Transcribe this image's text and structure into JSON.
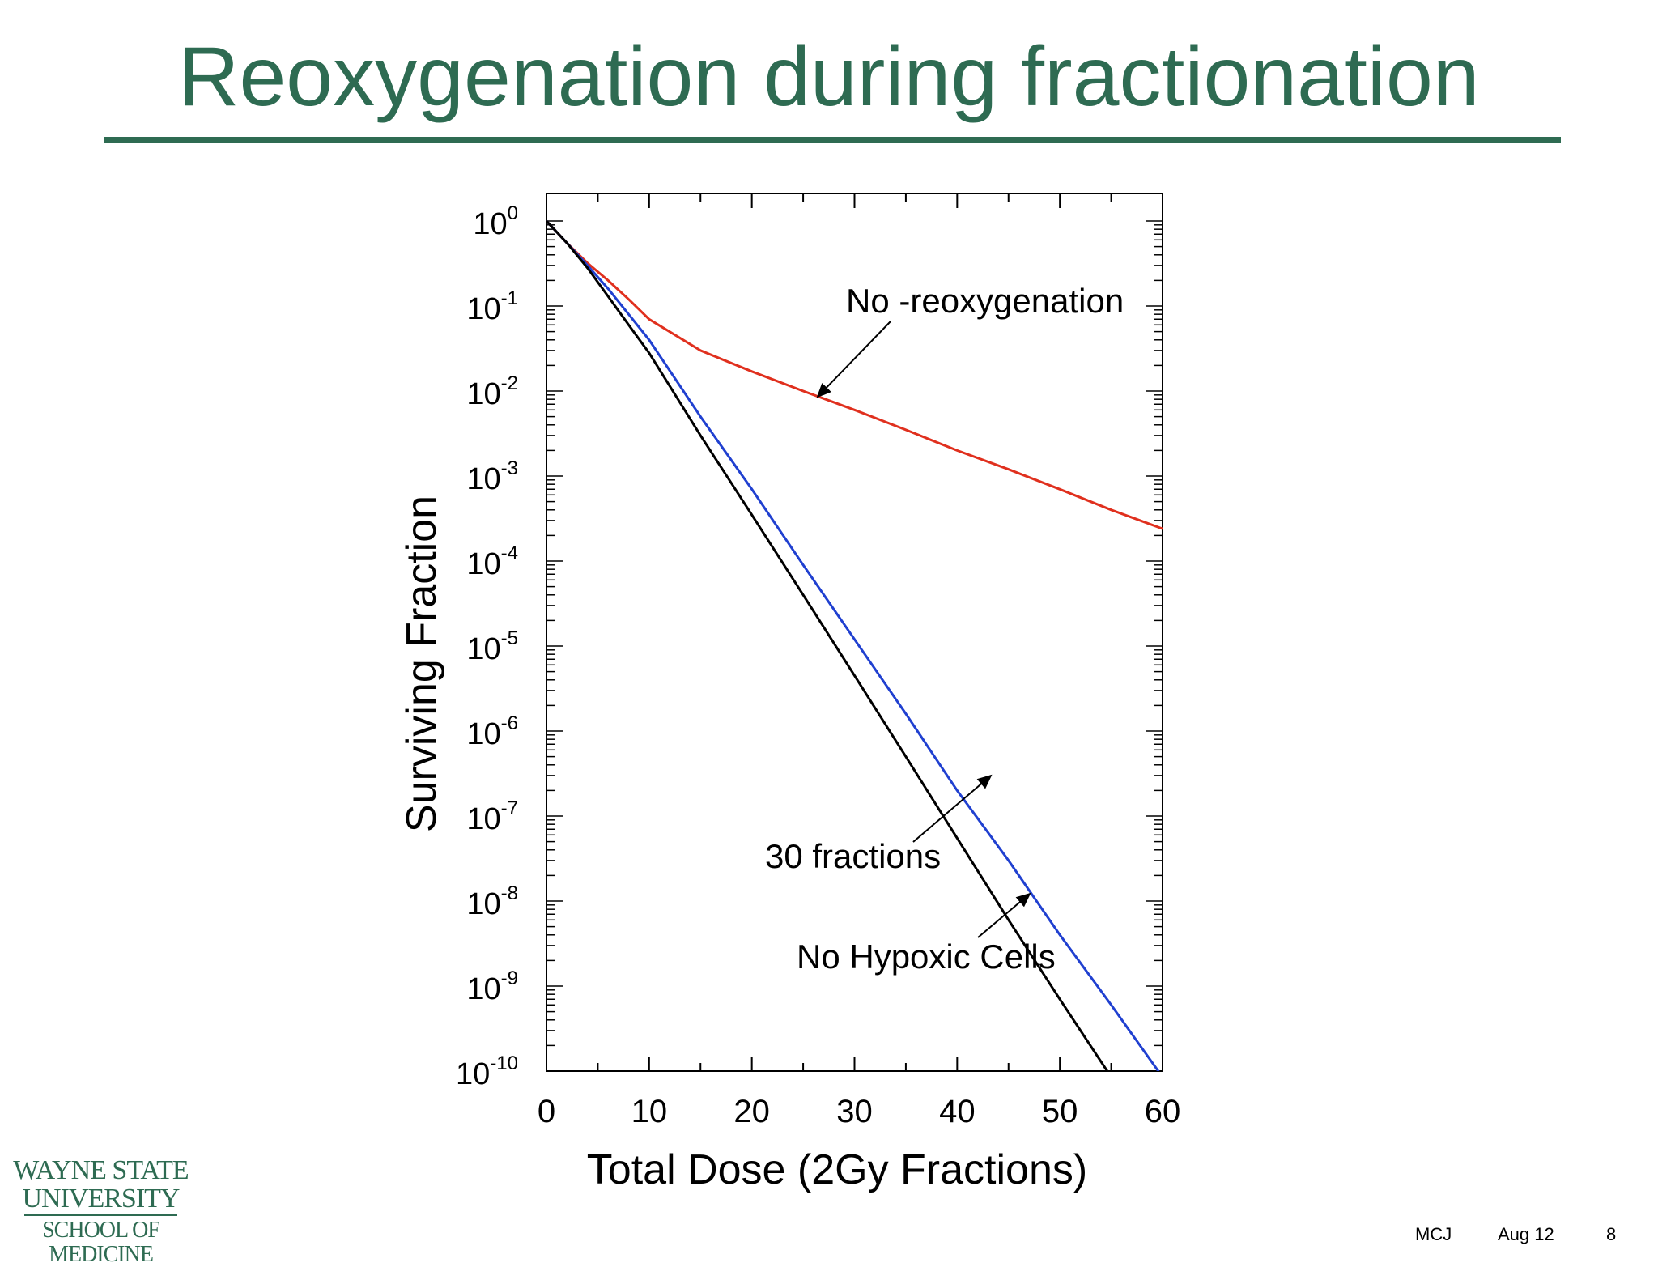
{
  "slide": {
    "title": "Reoxygenation during fractionation",
    "title_color": "#2e6b52",
    "footer": {
      "author": "MCJ",
      "date": "Aug 12",
      "page": "8"
    }
  },
  "logo": {
    "line1": "WAYNE STATE",
    "line2": "UNIVERSITY",
    "line3": "SCHOOL OF MEDICINE"
  },
  "chart_data": {
    "type": "line",
    "title": "",
    "xlabel": "Total Dose (2Gy Fractions)",
    "ylabel": "Surviving Fraction",
    "xlim": [
      0,
      60
    ],
    "ylim": [
      1e-10,
      1
    ],
    "yscale": "log",
    "grid": false,
    "x_ticks": [
      "0",
      "10",
      "20",
      "30",
      "40",
      "50",
      "60"
    ],
    "y_ticks": [
      {
        "base": "10",
        "exp": "0"
      },
      {
        "base": "10",
        "exp": "-1"
      },
      {
        "base": "10",
        "exp": "-2"
      },
      {
        "base": "10",
        "exp": "-3"
      },
      {
        "base": "10",
        "exp": "-4"
      },
      {
        "base": "10",
        "exp": "-5"
      },
      {
        "base": "10",
        "exp": "-6"
      },
      {
        "base": "10",
        "exp": "-7"
      },
      {
        "base": "10",
        "exp": "-8"
      },
      {
        "base": "10",
        "exp": "-9"
      },
      {
        "base": "10",
        "exp": "-10"
      }
    ],
    "series": [
      {
        "color": "#e0301e",
        "x": [
          0,
          2,
          4,
          6,
          8,
          10,
          15,
          20,
          25,
          30,
          35,
          40,
          45,
          50,
          55,
          60
        ],
        "y": [
          1.0,
          0.55,
          0.32,
          0.2,
          0.12,
          0.07,
          0.03,
          0.017,
          0.01,
          0.006,
          0.0035,
          0.002,
          0.0012,
          0.0007,
          0.0004,
          0.00024
        ]
      },
      {
        "color": "#2040d0",
        "x": [
          0,
          2,
          4,
          6,
          8,
          10,
          15,
          20,
          25,
          30,
          35,
          40,
          45,
          50,
          55,
          60
        ],
        "y": [
          1.0,
          0.55,
          0.3,
          0.16,
          0.08,
          0.04,
          0.005,
          0.0007,
          9e-05,
          1.2e-05,
          1.6e-06,
          2e-07,
          3e-08,
          4e-09,
          6e-10,
          1e-11
        ]
      },
      {
        "color": "#000000",
        "x": [
          0,
          2,
          4,
          6,
          8,
          10,
          15,
          20,
          25,
          30,
          35,
          40,
          45,
          50,
          55,
          60
        ],
        "y": [
          1.0,
          0.55,
          0.28,
          0.13,
          0.06,
          0.028,
          0.003,
          0.00035,
          4e-05,
          4.5e-06,
          5e-07,
          5.5e-08,
          6e-09,
          7e-10,
          8e-11,
          1e-11
        ]
      }
    ],
    "annotations": [
      {
        "text": "No -reoxygenation",
        "points_to": {
          "x": 26,
          "y": 0.009
        }
      },
      {
        "text": "30 fractions",
        "points_to": {
          "x": 43,
          "y": 3e-07
        }
      },
      {
        "text": "No Hypoxic Cells",
        "points_to": {
          "x": 47,
          "y": 1e-08
        }
      }
    ]
  }
}
